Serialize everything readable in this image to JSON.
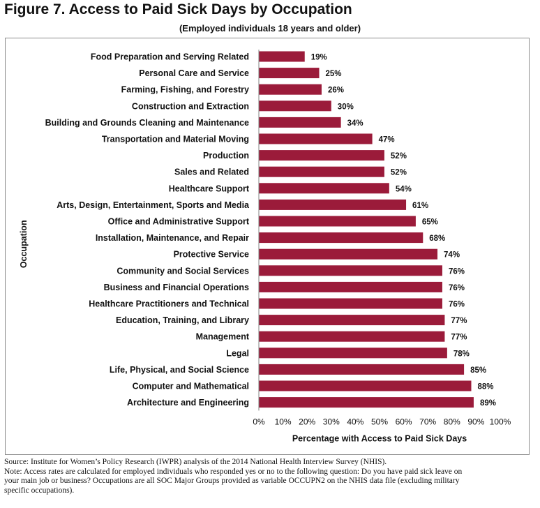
{
  "header": {
    "title": "Figure 7. Access to Paid Sick Days by Occupation",
    "subtitle": "(Employed individuals 18 years and older)"
  },
  "chart_data": {
    "type": "bar",
    "orientation": "horizontal",
    "categories": [
      "Food Preparation and Serving Related",
      "Personal Care and Service",
      "Farming, Fishing, and Forestry",
      "Construction and Extraction",
      "Building and Grounds Cleaning and Maintenance",
      "Transportation and Material Moving",
      "Production",
      "Sales and Related",
      "Healthcare Support",
      "Arts, Design, Entertainment, Sports and Media",
      "Office and Administrative Support",
      "Installation, Maintenance, and Repair",
      "Protective Service",
      "Community and Social Services",
      "Business and Financial Operations",
      "Healthcare Practitioners and Technical",
      "Education, Training, and Library",
      "Management",
      "Legal",
      "Life, Physical, and Social Science",
      "Computer and Mathematical",
      "Architecture and Engineering"
    ],
    "values": [
      19,
      25,
      26,
      30,
      34,
      47,
      52,
      52,
      54,
      61,
      65,
      68,
      74,
      76,
      76,
      76,
      77,
      77,
      78,
      85,
      88,
      89
    ],
    "value_labels": [
      "19%",
      "25%",
      "26%",
      "30%",
      "34%",
      "47%",
      "52%",
      "52%",
      "54%",
      "61%",
      "65%",
      "68%",
      "74%",
      "76%",
      "76%",
      "76%",
      "77%",
      "77%",
      "78%",
      "85%",
      "88%",
      "89%"
    ],
    "xlim": [
      0,
      100
    ],
    "x_ticks": [
      "0%",
      "10%",
      "20%",
      "30%",
      "40%",
      "50%",
      "60%",
      "70%",
      "80%",
      "90%",
      "100%"
    ],
    "xlabel": "Percentage with Access to Paid Sick Days",
    "ylabel": "Occupation",
    "grid": false,
    "legend": "none",
    "bar_color": "#9b1b3a"
  },
  "footnotes": {
    "source": "Source: Institute for Women’s Policy Research (IWPR) analysis of the 2014 National Health Interview Survey (NHIS).",
    "note_line1": "Note: Access rates are calculated for employed individuals who responded yes or no to the following question: Do you have paid sick leave on",
    "note_line2": "your main job or business? Occupations are all SOC Major Groups provided as variable OCCUPN2 on the NHIS data file (excluding military",
    "note_line3": "specific occupations)."
  }
}
